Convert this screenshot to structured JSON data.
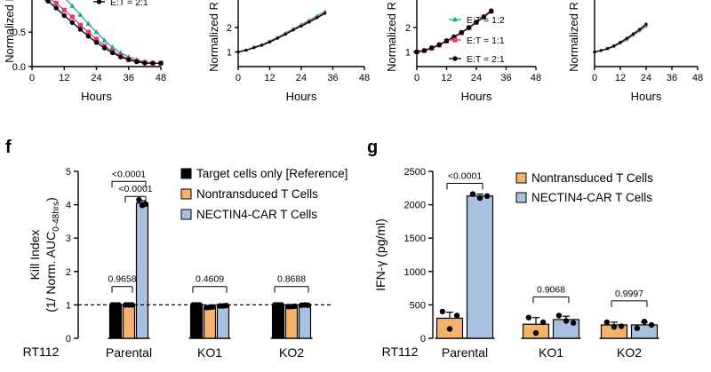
{
  "panels": {
    "f": "f",
    "g": "g"
  },
  "colors": {
    "target": "#000000",
    "nontransduced": "#f4b36d",
    "car": "#a9c1e0",
    "ratio_12": "#2aa39a",
    "ratio_11": "#e8347c",
    "ratio_21": "#000000"
  },
  "chart_data": [
    {
      "id": "top1",
      "type": "line",
      "xlabel": "Hours",
      "ylabel": "Normalized R",
      "xticks": [
        "0",
        "12",
        "24",
        "36",
        "48"
      ],
      "yticks": [
        "1.0",
        "0.5",
        "0.0"
      ],
      "xlim": [
        0,
        48
      ],
      "ylim": [
        0,
        1.25
      ],
      "legend": [
        "E:T = 2:1"
      ],
      "series": [
        {
          "name": "",
          "color_key": "ratio_12",
          "x": [
            0,
            3,
            6,
            9,
            12,
            15,
            18,
            21,
            24,
            27,
            30,
            33,
            36,
            39,
            42,
            45,
            48
          ],
          "y": [
            1.0,
            1.1,
            1.13,
            1.1,
            1.0,
            0.88,
            0.75,
            0.62,
            0.5,
            0.38,
            0.28,
            0.2,
            0.14,
            0.1,
            0.07,
            0.05,
            0.05
          ]
        },
        {
          "name": "",
          "color_key": "ratio_11",
          "x": [
            0,
            3,
            6,
            9,
            12,
            15,
            18,
            21,
            24,
            27,
            30,
            33,
            36,
            39,
            42,
            45,
            48
          ],
          "y": [
            1.0,
            1.05,
            1.0,
            0.92,
            0.82,
            0.72,
            0.6,
            0.5,
            0.4,
            0.3,
            0.22,
            0.16,
            0.11,
            0.08,
            0.06,
            0.05,
            0.05
          ]
        },
        {
          "name": "E:T = 2:1",
          "color_key": "ratio_21",
          "x": [
            0,
            3,
            6,
            9,
            12,
            15,
            18,
            21,
            24,
            27,
            30,
            33,
            36,
            39,
            42,
            45,
            48
          ],
          "y": [
            1.0,
            1.0,
            0.95,
            0.85,
            0.74,
            0.64,
            0.54,
            0.44,
            0.35,
            0.27,
            0.2,
            0.14,
            0.1,
            0.07,
            0.05,
            0.05,
            0.05
          ]
        }
      ]
    },
    {
      "id": "top2",
      "type": "line",
      "xlabel": "Hours",
      "ylabel": "Normalized R",
      "xticks": [
        "0",
        "12",
        "24",
        "36",
        "48"
      ],
      "yticks": [
        "1",
        "2"
      ],
      "xlim": [
        0,
        48
      ],
      "ylim": [
        0.4,
        3.2
      ],
      "legend": [],
      "series": [
        {
          "name": "",
          "color_key": "ratio_12",
          "x": [
            0,
            3,
            6,
            9,
            12,
            15,
            18,
            21,
            24,
            27,
            30,
            33
          ],
          "y": [
            1.0,
            1.08,
            1.2,
            1.3,
            1.45,
            1.6,
            1.78,
            1.95,
            2.12,
            2.3,
            2.48,
            2.65
          ]
        },
        {
          "name": "",
          "color_key": "ratio_11",
          "x": [
            0,
            3,
            6,
            9,
            12,
            15,
            18,
            21,
            24,
            27,
            30,
            33
          ],
          "y": [
            1.0,
            1.07,
            1.18,
            1.28,
            1.42,
            1.58,
            1.74,
            1.92,
            2.08,
            2.25,
            2.42,
            2.6
          ]
        },
        {
          "name": "",
          "color_key": "ratio_21",
          "x": [
            0,
            3,
            6,
            9,
            12,
            15,
            18,
            21,
            24,
            27,
            30,
            33
          ],
          "y": [
            1.0,
            1.07,
            1.17,
            1.27,
            1.4,
            1.56,
            1.72,
            1.9,
            2.06,
            2.22,
            2.4,
            2.58
          ]
        }
      ]
    },
    {
      "id": "top3",
      "type": "line",
      "xlabel": "Hours",
      "ylabel": "Normalized R",
      "xticks": [
        "0",
        "12",
        "24",
        "36",
        "48"
      ],
      "yticks": [
        "1",
        "2"
      ],
      "xlim": [
        0,
        48
      ],
      "ylim": [
        0.4,
        3.2
      ],
      "legend": [
        "E:T = 1:2",
        "E:T = 1:1",
        "E:T = 2:1"
      ],
      "series": [
        {
          "name": "E:T = 1:2",
          "color_key": "ratio_12",
          "x": [
            0,
            3,
            6,
            9,
            12,
            15,
            18,
            21,
            24,
            27,
            30
          ],
          "y": [
            1.0,
            1.05,
            1.15,
            1.28,
            1.45,
            1.62,
            1.8,
            2.0,
            2.22,
            2.45,
            2.7
          ]
        },
        {
          "name": "E:T = 1:1",
          "color_key": "ratio_11",
          "x": [
            0,
            3,
            6,
            9,
            12,
            15,
            18,
            21,
            24,
            27,
            30
          ],
          "y": [
            1.0,
            1.05,
            1.15,
            1.27,
            1.44,
            1.6,
            1.78,
            1.98,
            2.2,
            2.42,
            2.66
          ]
        },
        {
          "name": "E:T = 2:1",
          "color_key": "ratio_21",
          "x": [
            0,
            3,
            6,
            9,
            12,
            15,
            18,
            21,
            24,
            27,
            30
          ],
          "y": [
            1.0,
            1.06,
            1.17,
            1.3,
            1.46,
            1.62,
            1.8,
            2.0,
            2.22,
            2.44,
            2.68
          ]
        }
      ]
    },
    {
      "id": "top4",
      "type": "line",
      "xlabel": "Hours",
      "ylabel": "Normalized R",
      "xticks": [
        "0",
        "12",
        "24",
        "36",
        "48"
      ],
      "yticks": [],
      "xlim": [
        0,
        48
      ],
      "ylim": [
        0.4,
        3.2
      ],
      "legend": [],
      "series": [
        {
          "name": "",
          "color_key": "ratio_12",
          "x": [
            0,
            3,
            6,
            9,
            12,
            15,
            18,
            21,
            24
          ],
          "y": [
            1.0,
            1.05,
            1.12,
            1.22,
            1.35,
            1.5,
            1.68,
            1.86,
            2.05
          ]
        },
        {
          "name": "",
          "color_key": "ratio_11",
          "x": [
            0,
            3,
            6,
            9,
            12,
            15,
            18,
            21,
            24
          ],
          "y": [
            1.0,
            1.06,
            1.13,
            1.24,
            1.38,
            1.54,
            1.72,
            1.9,
            2.1
          ]
        },
        {
          "name": "",
          "color_key": "ratio_21",
          "x": [
            0,
            3,
            6,
            9,
            12,
            15,
            18,
            21,
            24
          ],
          "y": [
            1.0,
            1.06,
            1.14,
            1.25,
            1.4,
            1.56,
            1.74,
            1.93,
            2.14
          ]
        }
      ]
    },
    {
      "id": "f",
      "type": "bar",
      "ylabel_main": "Kill Index",
      "ylabel_sub": "(1/ Norm. AUC",
      "ylabel_subscript": "0-48hrs",
      "ylabel_close": ")",
      "yticks": [
        "0",
        "1",
        "2",
        "3",
        "4",
        "5"
      ],
      "ylim": [
        0,
        5
      ],
      "row_label": "RT112",
      "categories": [
        "Parental",
        "KO1",
        "KO2"
      ],
      "reference_line": 1,
      "series": [
        {
          "name": "Target cells only [Reference]",
          "color_key": "target",
          "values": [
            1.0,
            1.0,
            1.0
          ],
          "sem": [
            0.01,
            0.01,
            0.01
          ],
          "points": [
            [
              1,
              1,
              1
            ],
            [
              1,
              1,
              1
            ],
            [
              1,
              1,
              1
            ]
          ]
        },
        {
          "name": "Nontransduced T Cells",
          "color_key": "nontransduced",
          "values": [
            1.0,
            0.93,
            0.95
          ],
          "sem": [
            0.02,
            0.02,
            0.01
          ],
          "points": [
            [
              1,
              1,
              1
            ],
            [
              0.92,
              0.93,
              0.94
            ],
            [
              0.95,
              0.95,
              0.96
            ]
          ]
        },
        {
          "name": "NECTIN4-CAR T Cells",
          "color_key": "car",
          "values": [
            4.05,
            0.97,
            0.99
          ],
          "sem": [
            0.07,
            0.01,
            0.01
          ],
          "points": [
            [
              4.15,
              3.98,
              4.02
            ],
            [
              0.97,
              0.97,
              0.98
            ],
            [
              0.99,
              1,
              0.99
            ]
          ]
        }
      ],
      "annotations": [
        {
          "label": "<0.0001",
          "cat": 0,
          "from": 0,
          "to": 2,
          "y": 4.7
        },
        {
          "label": "<0.0001",
          "cat": 0,
          "from": 1,
          "to": 2,
          "y": 4.25
        },
        {
          "label": "0.9658",
          "cat": 0,
          "from": 0,
          "to": 1,
          "y": 1.55
        },
        {
          "label": "0.4609",
          "cat": 1,
          "from": 0,
          "to": 2,
          "y": 1.55
        },
        {
          "label": "0.8688",
          "cat": 2,
          "from": 0,
          "to": 2,
          "y": 1.55
        }
      ]
    },
    {
      "id": "g",
      "type": "bar",
      "ylabel": "IFN-γ (pg/ml)",
      "yticks": [
        "0",
        "500",
        "1000",
        "1500",
        "2000",
        "2500"
      ],
      "ylim": [
        0,
        2500
      ],
      "row_label": "RT112",
      "categories": [
        "Parental",
        "KO1",
        "KO2"
      ],
      "series": [
        {
          "name": "Nontransduced T Cells",
          "color_key": "nontransduced",
          "values": [
            300,
            210,
            200
          ],
          "sem": [
            90,
            100,
            40
          ],
          "points": [
            [
              400,
              140,
              340
            ],
            [
              310,
              80,
              240
            ],
            [
              240,
              170,
              180
            ]
          ]
        },
        {
          "name": "NECTIN4-CAR T Cells",
          "color_key": "car",
          "values": [
            2130,
            280,
            200
          ],
          "sem": [
            30,
            50,
            40
          ],
          "points": [
            [
              2160,
              2100,
              2130
            ],
            [
              340,
              260,
              230
            ],
            [
              150,
              250,
              200
            ]
          ]
        }
      ],
      "annotations": [
        {
          "label": "<0.0001",
          "cat": 0,
          "y": 2320
        },
        {
          "label": "0.9068",
          "cat": 1,
          "y": 620
        },
        {
          "label": "0.9997",
          "cat": 2,
          "y": 560
        }
      ]
    }
  ]
}
